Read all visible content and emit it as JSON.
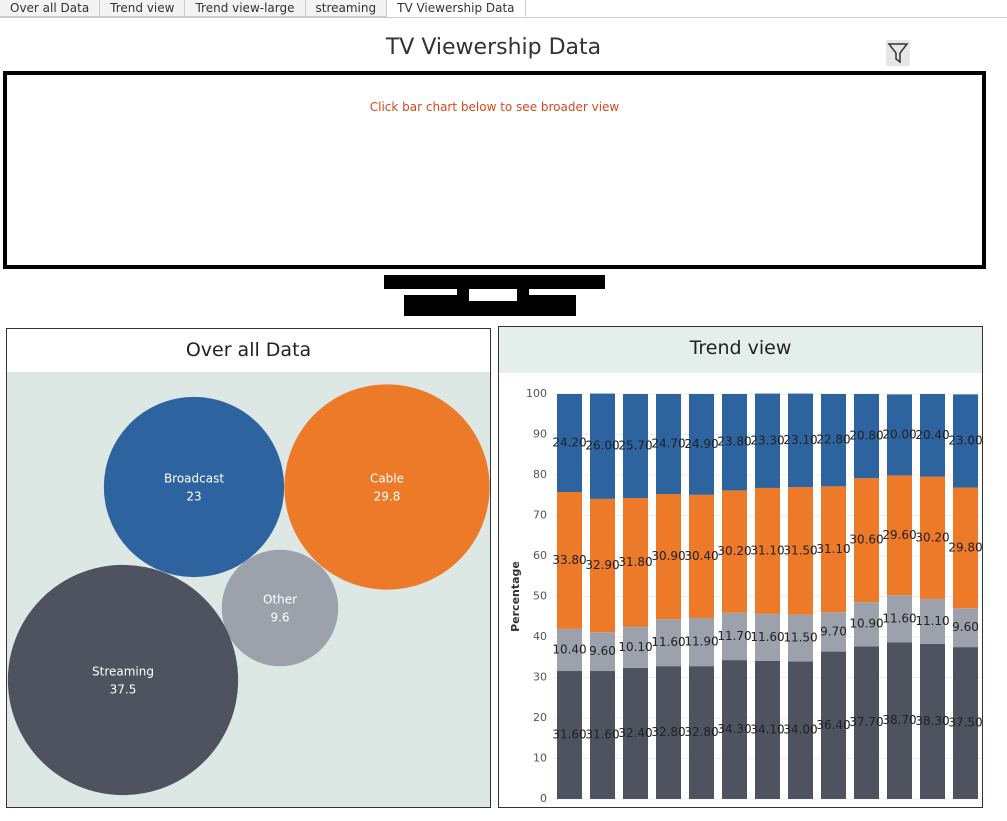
{
  "tabs": [
    "Over all Data",
    "Trend view",
    "Trend view-large",
    "streaming",
    "TV Viewership Data"
  ],
  "title": "TV Viewership Data",
  "note": "Click bar chart below to see broader view",
  "chart_data": [
    {
      "type": "bubble",
      "title": "Over all Data",
      "categories": [
        "Broadcast",
        "Cable",
        "Other",
        "Streaming"
      ],
      "values": [
        23,
        29.8,
        9.6,
        37.5
      ],
      "colors": [
        "#2d64a0",
        "#ec7a29",
        "#9ca1ac",
        "#4f5360"
      ]
    },
    {
      "type": "bar",
      "stacked": true,
      "title": "Trend view",
      "ylabel": "Percentage",
      "categories": [
        null,
        null,
        null,
        null,
        null,
        null,
        null,
        null,
        null,
        null,
        null,
        null,
        null
      ],
      "ylim": [
        0,
        100
      ],
      "yticks": [
        0,
        10,
        20,
        30,
        40,
        50,
        60,
        70,
        80,
        90,
        100
      ],
      "grid": true,
      "series": [
        {
          "color": "#4f5360",
          "values": [
            31.6,
            31.6,
            32.4,
            32.8,
            32.8,
            34.3,
            34.1,
            34,
            36.4,
            37.7,
            38.7,
            38.3,
            37.5
          ],
          "value_labels": [
            "31.60",
            "31.60",
            "32.40",
            "32.80",
            "32.80",
            "34.30",
            "34.10",
            "34.00",
            "36.40",
            "37.70",
            "38.70",
            "38.30",
            "37.50"
          ]
        },
        {
          "color": "#9ca1ac",
          "values": [
            10.4,
            9.6,
            10.1,
            11.6,
            11.9,
            11.7,
            11.6,
            11.5,
            9.7,
            10.9,
            11.6,
            11.1,
            9.6
          ],
          "value_labels": [
            "10.40",
            "9.60",
            "10.10",
            "11.60",
            "11.90",
            "11.70",
            "11.60",
            "11.50",
            "9.70",
            "10.90",
            "11.60",
            "11.10",
            "9.60"
          ]
        },
        {
          "color": "#ec7a29",
          "values": [
            33.8,
            32.9,
            31.8,
            30.9,
            30.4,
            30.2,
            31.1,
            31.5,
            31.1,
            30.6,
            29.6,
            30.2,
            29.8
          ],
          "value_labels": [
            "33.80",
            "32.90",
            "31.80",
            "30.90",
            "30.40",
            "30.20",
            "31.10",
            "31.50",
            "31.10",
            "30.60",
            "29.60",
            "30.20",
            "29.80"
          ]
        },
        {
          "color": "#2d64a0",
          "values": [
            24.2,
            26,
            25.7,
            24.7,
            24.9,
            23.8,
            23.3,
            23.1,
            22.8,
            20.8,
            20,
            20.4,
            23
          ],
          "value_labels": [
            "24.20",
            "26.00",
            "25.70",
            "24.70",
            "24.90",
            "23.80",
            "23.30",
            "23.10",
            "22.80",
            "20.80",
            "20.00",
            "20.40",
            "23.00"
          ]
        }
      ]
    }
  ]
}
